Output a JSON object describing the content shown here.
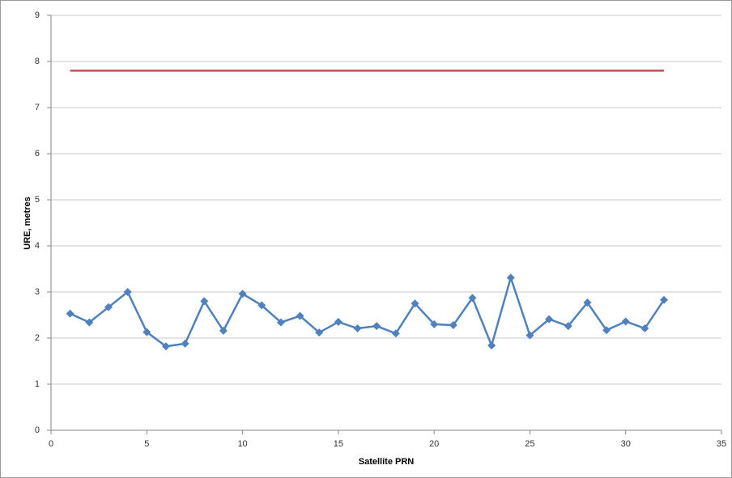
{
  "chart_data": {
    "type": "line",
    "x_label": "Satellite PRN",
    "y_label": "URE, metres",
    "xlim": [
      0,
      35
    ],
    "xticks": [
      0,
      5,
      10,
      15,
      20,
      25,
      30,
      35
    ],
    "ylim": [
      0,
      9
    ],
    "yticks": [
      0,
      1,
      2,
      3,
      4,
      5,
      6,
      7,
      8,
      9
    ],
    "grid": true,
    "series": [
      {
        "color": "#4f81bd",
        "marker": "diamond",
        "x": [
          1,
          2,
          3,
          4,
          5,
          6,
          7,
          8,
          9,
          10,
          11,
          12,
          13,
          14,
          15,
          16,
          17,
          18,
          19,
          20,
          21,
          22,
          23,
          24,
          25,
          26,
          27,
          28,
          29,
          30,
          31,
          32
        ],
        "values": [
          2.53,
          2.34,
          2.67,
          3.0,
          2.13,
          1.82,
          1.88,
          2.8,
          2.16,
          2.96,
          2.71,
          2.34,
          2.48,
          2.12,
          2.35,
          2.21,
          2.26,
          2.1,
          2.75,
          2.3,
          2.28,
          2.87,
          1.84,
          3.31,
          2.06,
          2.41,
          2.26,
          2.77,
          2.17,
          2.36,
          2.21,
          2.83
        ]
      },
      {
        "color": "#c0504d",
        "x": [
          1,
          32
        ],
        "values": [
          7.8,
          7.8
        ]
      }
    ]
  }
}
